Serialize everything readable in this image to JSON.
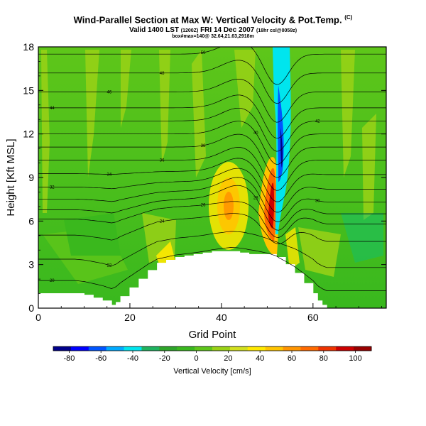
{
  "header": {
    "title": "Wind-Parallel Section at Max W: Vertical Velocity & Pot.Temp.",
    "title_units": "(C)",
    "valid_prefix": "Valid 1400 LST",
    "valid_utc": "(1200Z)",
    "valid_date": "FRI 14 Dec 2007",
    "valid_suffix": "(18hr csl@0059z)",
    "box_info": "box#max=140@ 32.64,21.63,2918m"
  },
  "chart_data": {
    "type": "heatmap",
    "title": "Wind-Parallel Section at Max W: Vertical Velocity & Pot.Temp.",
    "xlabel": "Grid Point",
    "ylabel": "Height [Kft MSL]",
    "xlim": [
      0,
      76
    ],
    "ylim": [
      0,
      18
    ],
    "xticks": [
      0,
      20,
      40,
      60
    ],
    "xtick_labels": [
      "0",
      "20",
      "40",
      "60"
    ],
    "yticks": [
      0,
      3,
      6,
      9,
      12,
      15,
      18
    ],
    "ytick_labels": [
      "0",
      "3",
      "6",
      "9",
      "12",
      "15",
      "18"
    ],
    "colorbar": {
      "label": "Vertical Velocity [cm/s]",
      "range": [
        -90,
        110
      ],
      "ticks": [
        -80,
        -60,
        -40,
        -20,
        0,
        20,
        40,
        60,
        80,
        100
      ],
      "tick_labels": [
        "-80",
        "-60",
        "-40",
        "-20",
        "0",
        "20",
        "40",
        "60",
        "80",
        "100"
      ],
      "colors": [
        "#00008b",
        "#0000ff",
        "#0055ff",
        "#00aaff",
        "#00e5ee",
        "#1fb35f",
        "#2ea52a",
        "#39b81e",
        "#5ec61a",
        "#9ad216",
        "#d2e01e",
        "#ffe900",
        "#ffc400",
        "#ff9500",
        "#ff6a00",
        "#ee3300",
        "#cc0000",
        "#990000"
      ]
    },
    "contour_labels": [
      "50",
      "48",
      "46",
      "44",
      "42",
      "40",
      "38",
      "36",
      "34",
      "32",
      "30",
      "28",
      "26",
      "24",
      "22",
      "20"
    ],
    "contour_base_heights_kft": [
      1.2,
      2.8,
      4.6,
      5.8,
      6.5,
      7.3,
      8.2,
      9.2,
      10.2,
      11.1,
      12.0,
      12.9,
      13.8,
      14.9,
      16.2,
      17.5
    ],
    "terrain_kft": [
      [
        0,
        1.0
      ],
      [
        5,
        1.0
      ],
      [
        8,
        1.0
      ],
      [
        10,
        0.9
      ],
      [
        12,
        0.7
      ],
      [
        14,
        0.5
      ],
      [
        16,
        0.2
      ],
      [
        17,
        0.4
      ],
      [
        18,
        0.8
      ],
      [
        20,
        1.4
      ],
      [
        22,
        2.0
      ],
      [
        24,
        2.6
      ],
      [
        26,
        3.1
      ],
      [
        28,
        3.3
      ],
      [
        30,
        3.5
      ],
      [
        32,
        3.6
      ],
      [
        34,
        3.7
      ],
      [
        36,
        3.8
      ],
      [
        38,
        3.9
      ],
      [
        40,
        3.9
      ],
      [
        42,
        3.9
      ],
      [
        44,
        3.8
      ],
      [
        46,
        3.7
      ],
      [
        48,
        3.7
      ],
      [
        50,
        3.7
      ],
      [
        52,
        3.5
      ],
      [
        54,
        3.0
      ],
      [
        56,
        2.4
      ],
      [
        58,
        1.7
      ],
      [
        60,
        1.0
      ],
      [
        61,
        0.5
      ],
      [
        62,
        0.2
      ],
      [
        63,
        0.0
      ]
    ]
  }
}
